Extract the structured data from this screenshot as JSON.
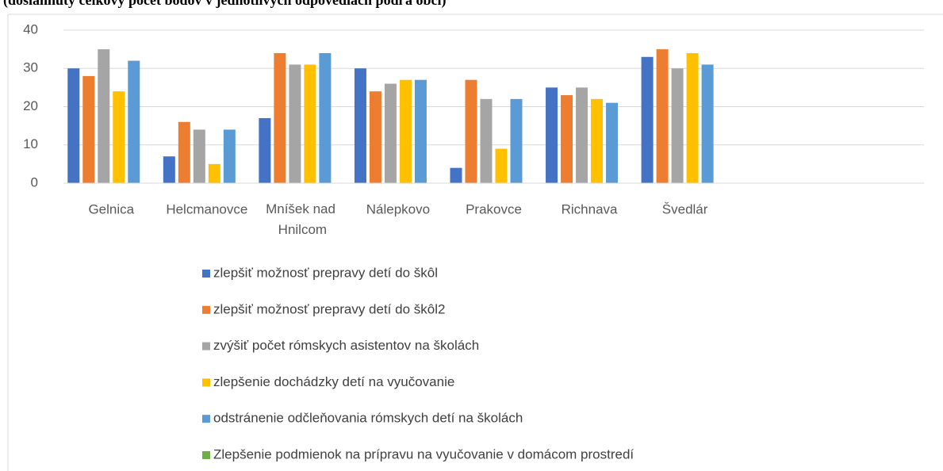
{
  "chart_data": {
    "type": "bar",
    "title": "(dosiahnutý celkový počet bodov v jednotlivých odpovediach podľa obcí)",
    "categories": [
      "Gelnica",
      "Helcmanovce",
      "Mníšek nad Hnilcom",
      "Nálepkovo",
      "Prakovce",
      "Richnava",
      "Švedlár",
      null,
      null
    ],
    "series": [
      {
        "name": "zlepšiť možnosť prepravy detí do škôl",
        "color": "#4472c4",
        "values": [
          30,
          7,
          17,
          30,
          4,
          25,
          33,
          null,
          null
        ]
      },
      {
        "name": "zlepšiť možnosť prepravy detí do škôl2",
        "color": "#ed7d31",
        "values": [
          28,
          16,
          34,
          24,
          27,
          23,
          35,
          null,
          null
        ]
      },
      {
        "name": "zvýšiť počet rómskych asistentov na školách",
        "color": "#a5a5a5",
        "values": [
          35,
          14,
          31,
          26,
          22,
          25,
          30,
          null,
          null
        ]
      },
      {
        "name": "zlepšenie dochádzky detí na vyučovanie",
        "color": "#ffc000",
        "values": [
          24,
          5,
          31,
          27,
          9,
          22,
          34,
          null,
          null
        ]
      },
      {
        "name": "odstránenie odčleňovania rómskych detí na školách",
        "color": "#5b9bd5",
        "values": [
          32,
          14,
          34,
          27,
          22,
          21,
          31,
          null,
          null
        ]
      },
      {
        "name": "Zlepšenie podmienok na prípravu na vyučovanie v domácom prostredí",
        "color": "#70ad47",
        "values": [
          null,
          null,
          null,
          null,
          null,
          null,
          null,
          null,
          null
        ]
      }
    ],
    "ylim": [
      0,
      40
    ],
    "yticks": [
      0,
      10,
      20,
      30,
      40
    ],
    "grid": true,
    "legend": "bottom"
  }
}
